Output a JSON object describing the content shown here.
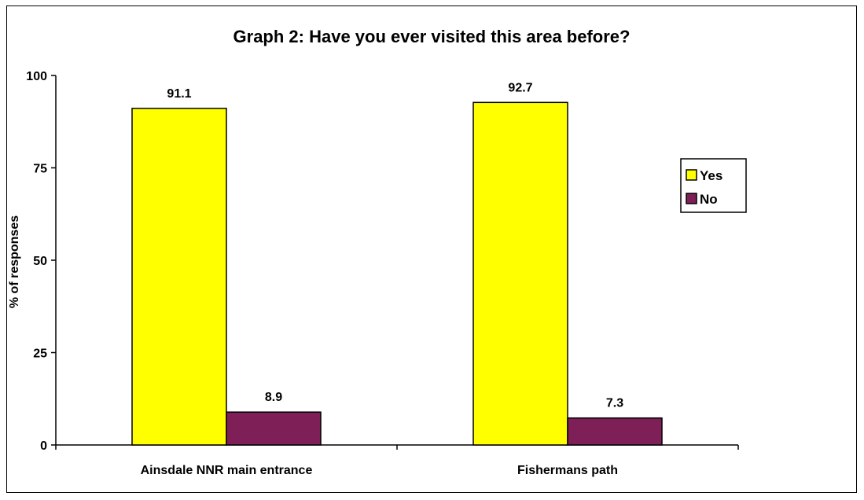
{
  "chart_data": {
    "type": "bar",
    "title": "Graph 2: Have you ever visited this area before?",
    "xlabel": "",
    "ylabel": "% of responses",
    "categories": [
      "Ainsdale NNR main entrance",
      "Fishermans path"
    ],
    "series": [
      {
        "name": "Yes",
        "values": [
          91.1,
          92.7
        ],
        "color": "#ffff00",
        "labels": [
          "91.1",
          "92.7"
        ]
      },
      {
        "name": "No",
        "values": [
          8.9,
          7.3
        ],
        "color": "#7f1f57",
        "labels": [
          "8.9",
          "7.3"
        ]
      }
    ],
    "ylim": [
      0,
      100
    ],
    "yticks": [
      0,
      25,
      50,
      75,
      100
    ],
    "ytick_labels": [
      "0",
      "25",
      "50",
      "75",
      "100"
    ],
    "grid": false,
    "legend": "right"
  }
}
